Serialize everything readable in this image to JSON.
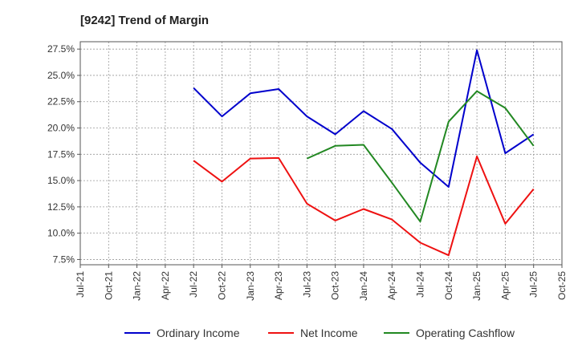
{
  "chart_data": {
    "type": "line",
    "title": "[9242]  Trend of Margin",
    "xlabel": "",
    "ylabel": "",
    "categories": [
      "Jul-21",
      "Oct-21",
      "Jan-22",
      "Apr-22",
      "Jul-22",
      "Oct-22",
      "Jan-23",
      "Apr-23",
      "Jul-23",
      "Oct-23",
      "Jan-24",
      "Apr-24",
      "Jul-24",
      "Oct-24",
      "Jan-25",
      "Apr-25",
      "Jul-25",
      "Oct-25"
    ],
    "y_ticks": [
      "7.5%",
      "10.0%",
      "12.5%",
      "15.0%",
      "17.5%",
      "20.0%",
      "22.5%",
      "25.0%",
      "27.5%"
    ],
    "y_tick_values": [
      7.5,
      10.0,
      12.5,
      15.0,
      17.5,
      20.0,
      22.5,
      25.0,
      27.5
    ],
    "ylim": [
      7.0,
      28.2
    ],
    "grid": true,
    "legend_position": "bottom",
    "series": [
      {
        "name": "Ordinary Income",
        "color": "#0000cc",
        "values": [
          null,
          null,
          null,
          null,
          23.8,
          21.1,
          23.3,
          23.7,
          21.1,
          19.4,
          21.6,
          19.9,
          16.7,
          14.4,
          27.4,
          17.6,
          19.4,
          null
        ]
      },
      {
        "name": "Net Income",
        "color": "#ee1111",
        "values": [
          null,
          null,
          null,
          null,
          16.9,
          14.9,
          17.1,
          17.15,
          12.8,
          11.2,
          12.3,
          11.3,
          9.1,
          7.9,
          17.3,
          10.9,
          14.2,
          null
        ]
      },
      {
        "name": "Operating Cashflow",
        "color": "#228822",
        "values": [
          null,
          null,
          null,
          null,
          null,
          null,
          null,
          null,
          17.1,
          18.3,
          18.4,
          14.8,
          11.1,
          20.6,
          23.5,
          21.9,
          18.3,
          null
        ]
      }
    ]
  }
}
